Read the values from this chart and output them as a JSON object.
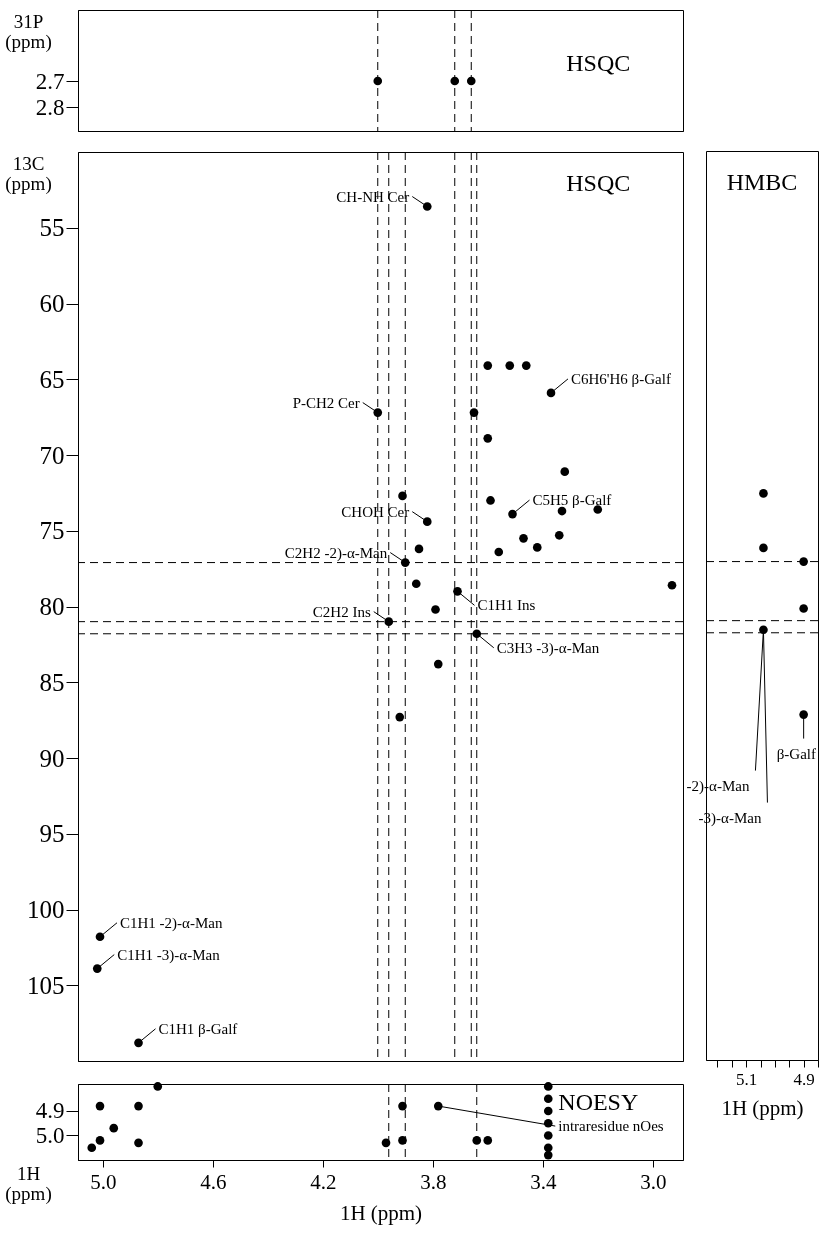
{
  "chart_data": [
    {
      "type": "scatter",
      "ylabel": "31P (ppm)",
      "annotations": [
        "HSQC"
      ],
      "xlim": [
        5.09,
        2.89
      ],
      "xticks": [
        5,
        4.6,
        4.2,
        3.8,
        3.4,
        3
      ],
      "ylim": [
        2.89,
        2.43
      ],
      "yticks": [
        2.7,
        2.8
      ],
      "tick_labels": "y",
      "marker": "circle",
      "grid": false,
      "series": [
        {
          "color": "#000000",
          "x": [
            4.0,
            3.72,
            3.66
          ],
          "values": [
            2.7,
            2.7,
            2.7
          ]
        }
      ],
      "ref_lines": [
        {
          "axis": "x",
          "value": 4.0,
          "line_style": "dashed"
        },
        {
          "axis": "x",
          "value": 3.72,
          "line_style": "dashed"
        },
        {
          "axis": "x",
          "value": 3.66,
          "line_style": "dashed"
        }
      ]
    },
    {
      "type": "scatter",
      "ylabel": "13C (ppm)",
      "xlim": [
        5.09,
        2.89
      ],
      "xticks": [
        5,
        4.6,
        4.2,
        3.8,
        3.4,
        3
      ],
      "ylim": [
        110,
        50
      ],
      "yticks": [
        55,
        60,
        65,
        70,
        75,
        80,
        85,
        90,
        95,
        100,
        105
      ],
      "tick_labels": "y",
      "marker": "circle",
      "grid": false,
      "annotations": [
        "HSQC",
        {
          "text": "CH-NH Cer",
          "x": 3.82,
          "y": 53.6
        },
        {
          "text": "P-CH2 Cer",
          "x": 4.0,
          "y": 67.2
        },
        {
          "text": "C6H6'H6 β-Galf",
          "x": 3.37,
          "y": 65.9
        },
        {
          "text": "C5H5 β-Galf",
          "x": 3.51,
          "y": 73.9
        },
        {
          "text": "CHOH Cer",
          "x": 3.82,
          "y": 74.4
        },
        {
          "text": "C2H2 -2)-α-Man",
          "x": 3.9,
          "y": 77.1
        },
        {
          "text": "C1H1 Ins",
          "x": 3.71,
          "y": 79.0
        },
        {
          "text": "C2H2 Ins",
          "x": 3.96,
          "y": 81.0
        },
        {
          "text": "C3H3 -3)-α-Man",
          "x": 3.64,
          "y": 81.8
        },
        {
          "text": "C1H1 -2)-α-Man",
          "x": 5.01,
          "y": 101.8
        },
        {
          "text": "C1H1 -3)-α-Man",
          "x": 5.02,
          "y": 103.9
        },
        {
          "text": "C1H1 β-Galf",
          "x": 4.87,
          "y": 108.8
        }
      ],
      "series": [
        {
          "color": "#000000",
          "x": [
            3.82,
            3.6,
            3.52,
            3.46,
            3.37,
            4.0,
            3.65,
            3.6,
            3.32,
            3.91,
            3.59,
            3.51,
            3.33,
            3.2,
            3.82,
            3.47,
            3.34,
            3.42,
            3.85,
            3.56,
            3.9,
            3.86,
            3.71,
            2.93,
            3.79,
            3.96,
            3.64,
            3.78,
            3.92,
            5.01,
            5.02,
            4.87
          ],
          "values": [
            53.6,
            64.1,
            64.1,
            64.1,
            65.9,
            67.2,
            67.2,
            68.9,
            71.1,
            72.7,
            73.0,
            73.9,
            73.7,
            73.6,
            74.4,
            75.5,
            75.3,
            76.1,
            76.2,
            76.4,
            77.1,
            78.5,
            79.0,
            78.6,
            80.2,
            81.0,
            81.8,
            83.8,
            87.3,
            101.8,
            103.9,
            108.8
          ]
        }
      ],
      "ref_lines": [
        {
          "axis": "x",
          "value": 4.0,
          "line_style": "dashed"
        },
        {
          "axis": "x",
          "value": 3.72,
          "line_style": "dashed"
        },
        {
          "axis": "x",
          "value": 3.66,
          "line_style": "dashed"
        },
        {
          "axis": "x",
          "value": 3.96,
          "line_style": "dashed"
        },
        {
          "axis": "x",
          "value": 3.9,
          "line_style": "dashed"
        },
        {
          "axis": "x",
          "value": 3.64,
          "line_style": "dashed"
        },
        {
          "axis": "y",
          "value": 77.1,
          "line_style": "dashed"
        },
        {
          "axis": "y",
          "value": 81.0,
          "line_style": "dashed"
        },
        {
          "axis": "y",
          "value": 81.8,
          "line_style": "dashed"
        }
      ]
    },
    {
      "type": "scatter",
      "xlabel": "1H (ppm)",
      "xlim": [
        5.24,
        4.85
      ],
      "ylim": [
        110,
        50
      ],
      "tick_labels": "x",
      "marker": "circle",
      "grid": false,
      "xticks": [
        {
          "value": 5.2,
          "label": null
        },
        {
          "value": 5.15,
          "label": null
        },
        5.1,
        {
          "value": 5.05,
          "label": null
        },
        {
          "value": 5.0,
          "label": null
        },
        {
          "value": 4.95,
          "label": null
        },
        4.9,
        {
          "value": 4.85,
          "label": null
        }
      ],
      "annotations": [
        "HMBC",
        {
          "text": "β-Galf",
          "x": 4.9,
          "y": 87.2
        },
        {
          "text": "-2)-α-Man",
          "x": 5.04,
          "y": 81.6
        },
        {
          "text": "-3)-α-Man",
          "x": 5.04,
          "y": 81.6
        }
      ],
      "series": [
        {
          "color": "#000000",
          "x": [
            5.04,
            5.04,
            4.9,
            4.9,
            5.04,
            4.9
          ],
          "values": [
            72.6,
            76.2,
            77.1,
            80.2,
            81.6,
            87.2
          ]
        }
      ],
      "ref_lines": [
        {
          "axis": "y",
          "value": 77.1,
          "line_style": "dashed"
        },
        {
          "axis": "y",
          "value": 81.0,
          "line_style": "dashed"
        },
        {
          "axis": "y",
          "value": 81.8,
          "line_style": "dashed"
        }
      ]
    },
    {
      "type": "scatter",
      "xlabel": "1H (ppm)",
      "ylabel": "1H (ppm)",
      "xlim": [
        5.09,
        2.89
      ],
      "ylim": [
        5.1,
        4.79
      ],
      "marker": "circle",
      "grid": false,
      "xticks": [
        {
          "value": 5,
          "label": "5.0"
        },
        4.6,
        4.2,
        3.8,
        3.4,
        {
          "value": 3,
          "label": "3.0"
        }
      ],
      "yticks": [
        4.9,
        {
          "value": 5,
          "label": "5.0"
        }
      ],
      "annotations": [
        "NOESY",
        {
          "text": "intraresidue nOes",
          "x": 3.78,
          "y": 4.88
        }
      ],
      "series": [
        {
          "color": "#000000",
          "x": [
            5.04,
            5.01,
            4.96,
            5.01,
            4.87,
            4.87,
            4.8,
            3.97,
            3.91,
            3.91,
            3.78,
            3.64,
            3.6,
            3.38,
            3.38,
            3.38,
            3.38,
            3.38,
            3.38,
            3.38
          ],
          "values": [
            5.05,
            5.02,
            4.97,
            4.88,
            4.88,
            5.03,
            4.8,
            5.03,
            5.02,
            4.88,
            4.88,
            5.02,
            5.02,
            4.8,
            4.85,
            4.9,
            4.95,
            5.0,
            5.05,
            5.08
          ]
        }
      ],
      "ref_lines": [
        {
          "axis": "x",
          "value": 3.96,
          "line_style": "dashed"
        },
        {
          "axis": "x",
          "value": 3.9,
          "line_style": "dashed"
        },
        {
          "axis": "x",
          "value": 3.64,
          "line_style": "dashed"
        }
      ]
    }
  ]
}
